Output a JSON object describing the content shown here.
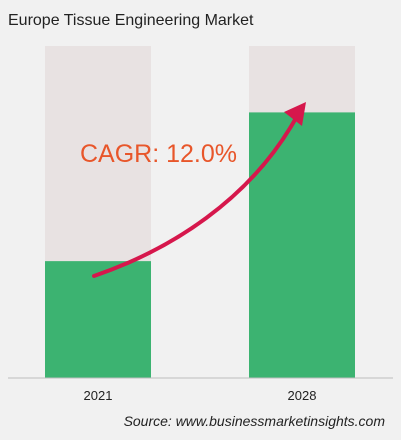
{
  "title": "Europe Tissue Engineering Market",
  "source": "Source: www.businessmarketinsights.com",
  "annotation": "CAGR: 12.0%",
  "colors": {
    "bar_fill": "#3cb371",
    "bar_track": "#e8e2e2",
    "arrow": "#d6174c",
    "cagr_text": "#e8562a",
    "background": "#f1f1f1"
  },
  "chart_data": {
    "type": "bar",
    "categories": [
      "2021",
      "2028"
    ],
    "values": [
      0.44,
      1.0
    ],
    "title": "Europe Tissue Engineering Market",
    "xlabel": "",
    "ylabel": "",
    "ylim": [
      0,
      1.25
    ],
    "grid": false,
    "legend": "none",
    "annotations": [
      "CAGR: 12.0%"
    ]
  }
}
